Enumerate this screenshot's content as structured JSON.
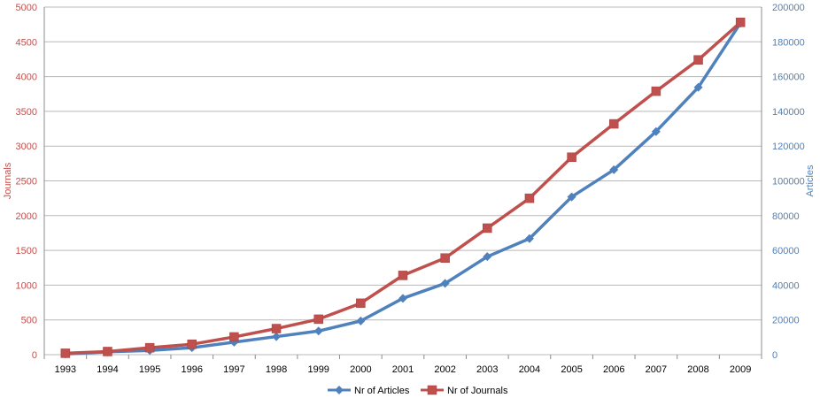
{
  "chart_data": {
    "type": "line",
    "categories": [
      "1993",
      "1994",
      "1995",
      "1996",
      "1997",
      "1998",
      "1999",
      "2000",
      "2001",
      "2002",
      "2003",
      "2004",
      "2005",
      "2006",
      "2007",
      "2008",
      "2009"
    ],
    "series": [
      {
        "name": "Nr of Articles",
        "axis": "right",
        "color": "#4f81bd",
        "marker": "diamond",
        "values": [
          400,
          1600,
          2400,
          4000,
          7200,
          10400,
          13600,
          19400,
          32400,
          41000,
          56400,
          66800,
          90800,
          106400,
          128400,
          153800,
          190800
        ]
      },
      {
        "name": "Nr of Journals",
        "axis": "left",
        "color": "#c0504d",
        "marker": "square",
        "values": [
          20,
          45,
          100,
          150,
          255,
          375,
          510,
          740,
          1140,
          1390,
          1820,
          2250,
          2840,
          3320,
          3790,
          4240,
          4780
        ]
      }
    ],
    "ylabel": "Journals",
    "y2label": "Articles",
    "ylim": [
      0,
      5000
    ],
    "y2lim": [
      0,
      200000
    ],
    "yticks": [
      "0",
      "500",
      "1000",
      "1500",
      "2000",
      "2500",
      "3000",
      "3500",
      "4000",
      "4500",
      "5000"
    ],
    "y2ticks": [
      "0",
      "20000",
      "40000",
      "60000",
      "80000",
      "100000",
      "120000",
      "140000",
      "160000",
      "180000",
      "200000"
    ],
    "grid": true,
    "legend_position": "bottom",
    "left_axis_color": "#c0504d",
    "right_axis_color": "#4f81bd"
  }
}
